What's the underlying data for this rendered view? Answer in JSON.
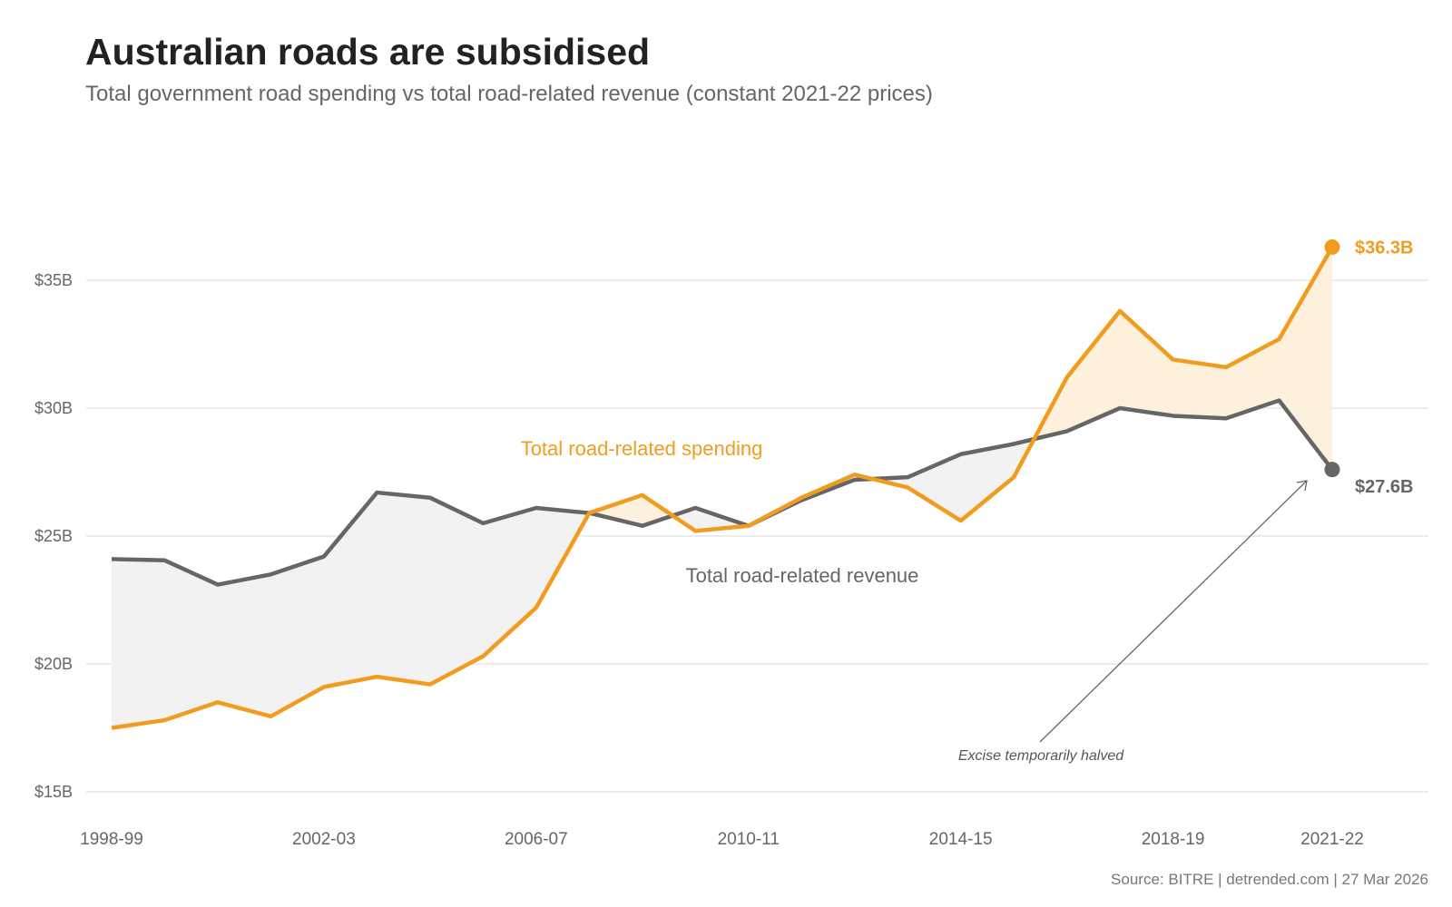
{
  "title": "Australian roads are subsidised",
  "subtitle": "Total government road spending vs total road-related revenue (constant 2021-22 prices)",
  "source": "Source: BITRE | detrended.com | 27 Mar 2026",
  "colors": {
    "spending": "#f29c1f",
    "revenue": "#666666",
    "spending_fill": "#fdf0dc",
    "revenue_fill": "#f2f2f2",
    "grid": "#e6e6e6"
  },
  "chart_data": {
    "type": "line",
    "title": "Australian roads are subsidised",
    "x": [
      "1998-99",
      "1999-00",
      "2000-01",
      "2001-02",
      "2002-03",
      "2003-04",
      "2004-05",
      "2005-06",
      "2006-07",
      "2007-08",
      "2008-09",
      "2009-10",
      "2010-11",
      "2011-12",
      "2012-13",
      "2013-14",
      "2014-15",
      "2015-16",
      "2016-17",
      "2017-18",
      "2018-19",
      "2019-20",
      "2020-21",
      "2021-22"
    ],
    "x_tick_labels": [
      "1998-99",
      "2002-03",
      "2006-07",
      "2010-11",
      "2014-15",
      "2018-19",
      "2021-22"
    ],
    "ylim": [
      15,
      36.3
    ],
    "y_ticks": [
      15,
      20,
      25,
      30,
      35
    ],
    "y_tick_labels": [
      "$15B",
      "$20B",
      "$25B",
      "$30B",
      "$35B"
    ],
    "grid": true,
    "series": [
      {
        "name": "Total road-related spending",
        "values": [
          17.5,
          17.8,
          18.5,
          17.95,
          19.1,
          19.5,
          19.2,
          20.3,
          22.2,
          25.9,
          26.6,
          25.2,
          25.4,
          26.5,
          27.4,
          26.9,
          25.6,
          27.3,
          31.2,
          33.8,
          31.9,
          31.6,
          32.7,
          36.3
        ],
        "end_label": "$36.3B"
      },
      {
        "name": "Total road-related revenue",
        "values": [
          24.1,
          24.05,
          23.1,
          23.5,
          24.2,
          26.7,
          26.5,
          25.5,
          26.1,
          25.9,
          25.4,
          26.1,
          25.4,
          26.4,
          27.2,
          27.3,
          28.2,
          28.6,
          29.1,
          30.0,
          29.7,
          29.6,
          30.3,
          27.6
        ],
        "end_label": "$27.6B"
      }
    ],
    "annotations": [
      {
        "text": "Excise temporarily halved",
        "x": "2021-22",
        "y": 27.6
      }
    ]
  }
}
